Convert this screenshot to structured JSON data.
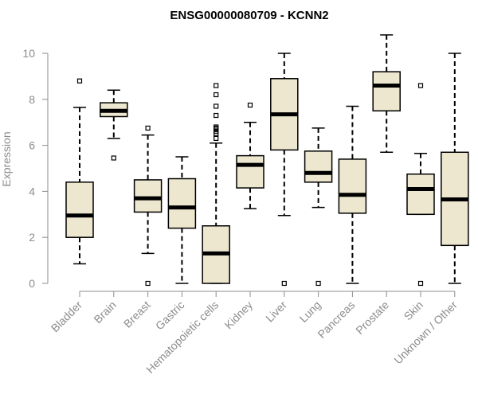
{
  "chart_data": {
    "type": "boxplot",
    "title": "ENSG00000080709 - KCNN2",
    "xlabel": "",
    "ylabel": "Expression",
    "ylim": [
      0,
      10
    ],
    "yticks": [
      0,
      2,
      4,
      6,
      8,
      10
    ],
    "box_fill": "#ede7cf",
    "box_stroke": "#000000",
    "axis_color": "#8c8c8c",
    "categories": [
      "Bladder",
      "Brain",
      "Breast",
      "Gastric",
      "Hematopoietic cells",
      "Kidney",
      "Liver",
      "Lung",
      "Pancreas",
      "Prostate",
      "Skin",
      "Unknown / Other"
    ],
    "boxes": [
      {
        "category": "Bladder",
        "whisker_low": 0.85,
        "q1": 2.0,
        "median": 2.95,
        "q3": 4.4,
        "whisker_high": 7.65,
        "outliers": [
          8.8
        ]
      },
      {
        "category": "Brain",
        "whisker_low": 6.3,
        "q1": 7.25,
        "median": 7.5,
        "q3": 7.85,
        "whisker_high": 8.4,
        "outliers": [
          5.45
        ]
      },
      {
        "category": "Breast",
        "whisker_low": 1.3,
        "q1": 3.1,
        "median": 3.7,
        "q3": 4.5,
        "whisker_high": 6.45,
        "outliers": [
          0.0,
          6.75
        ]
      },
      {
        "category": "Gastric",
        "whisker_low": 0.0,
        "q1": 2.4,
        "median": 3.3,
        "q3": 4.55,
        "whisker_high": 5.5,
        "outliers": []
      },
      {
        "category": "Hematopoietic cells",
        "whisker_low": 0.0,
        "q1": 0.0,
        "median": 1.3,
        "q3": 2.5,
        "whisker_high": 6.1,
        "outliers": [
          6.3,
          6.5,
          6.6,
          6.7,
          6.75,
          6.8,
          7.3,
          7.7,
          8.2,
          8.6
        ]
      },
      {
        "category": "Kidney",
        "whisker_low": 3.25,
        "q1": 4.15,
        "median": 5.15,
        "q3": 5.55,
        "whisker_high": 7.0,
        "outliers": [
          7.75
        ]
      },
      {
        "category": "Liver",
        "whisker_low": 2.95,
        "q1": 5.8,
        "median": 7.35,
        "q3": 8.9,
        "whisker_high": 10.0,
        "outliers": [
          0.0
        ]
      },
      {
        "category": "Lung",
        "whisker_low": 3.3,
        "q1": 4.4,
        "median": 4.8,
        "q3": 5.75,
        "whisker_high": 6.75,
        "outliers": [
          0.0
        ]
      },
      {
        "category": "Pancreas",
        "whisker_low": 0.0,
        "q1": 3.05,
        "median": 3.85,
        "q3": 5.4,
        "whisker_high": 7.7,
        "outliers": []
      },
      {
        "category": "Prostate",
        "whisker_low": 5.7,
        "q1": 7.5,
        "median": 8.6,
        "q3": 9.2,
        "whisker_high": 10.8,
        "outliers": []
      },
      {
        "category": "Skin",
        "whisker_low": 3.0,
        "q1": 3.0,
        "median": 4.1,
        "q3": 4.75,
        "whisker_high": 5.65,
        "outliers": [
          0.0,
          8.6
        ]
      },
      {
        "category": "Unknown / Other",
        "whisker_low": 0.0,
        "q1": 1.65,
        "median": 3.65,
        "q3": 5.7,
        "whisker_high": 10.0,
        "outliers": []
      }
    ]
  }
}
